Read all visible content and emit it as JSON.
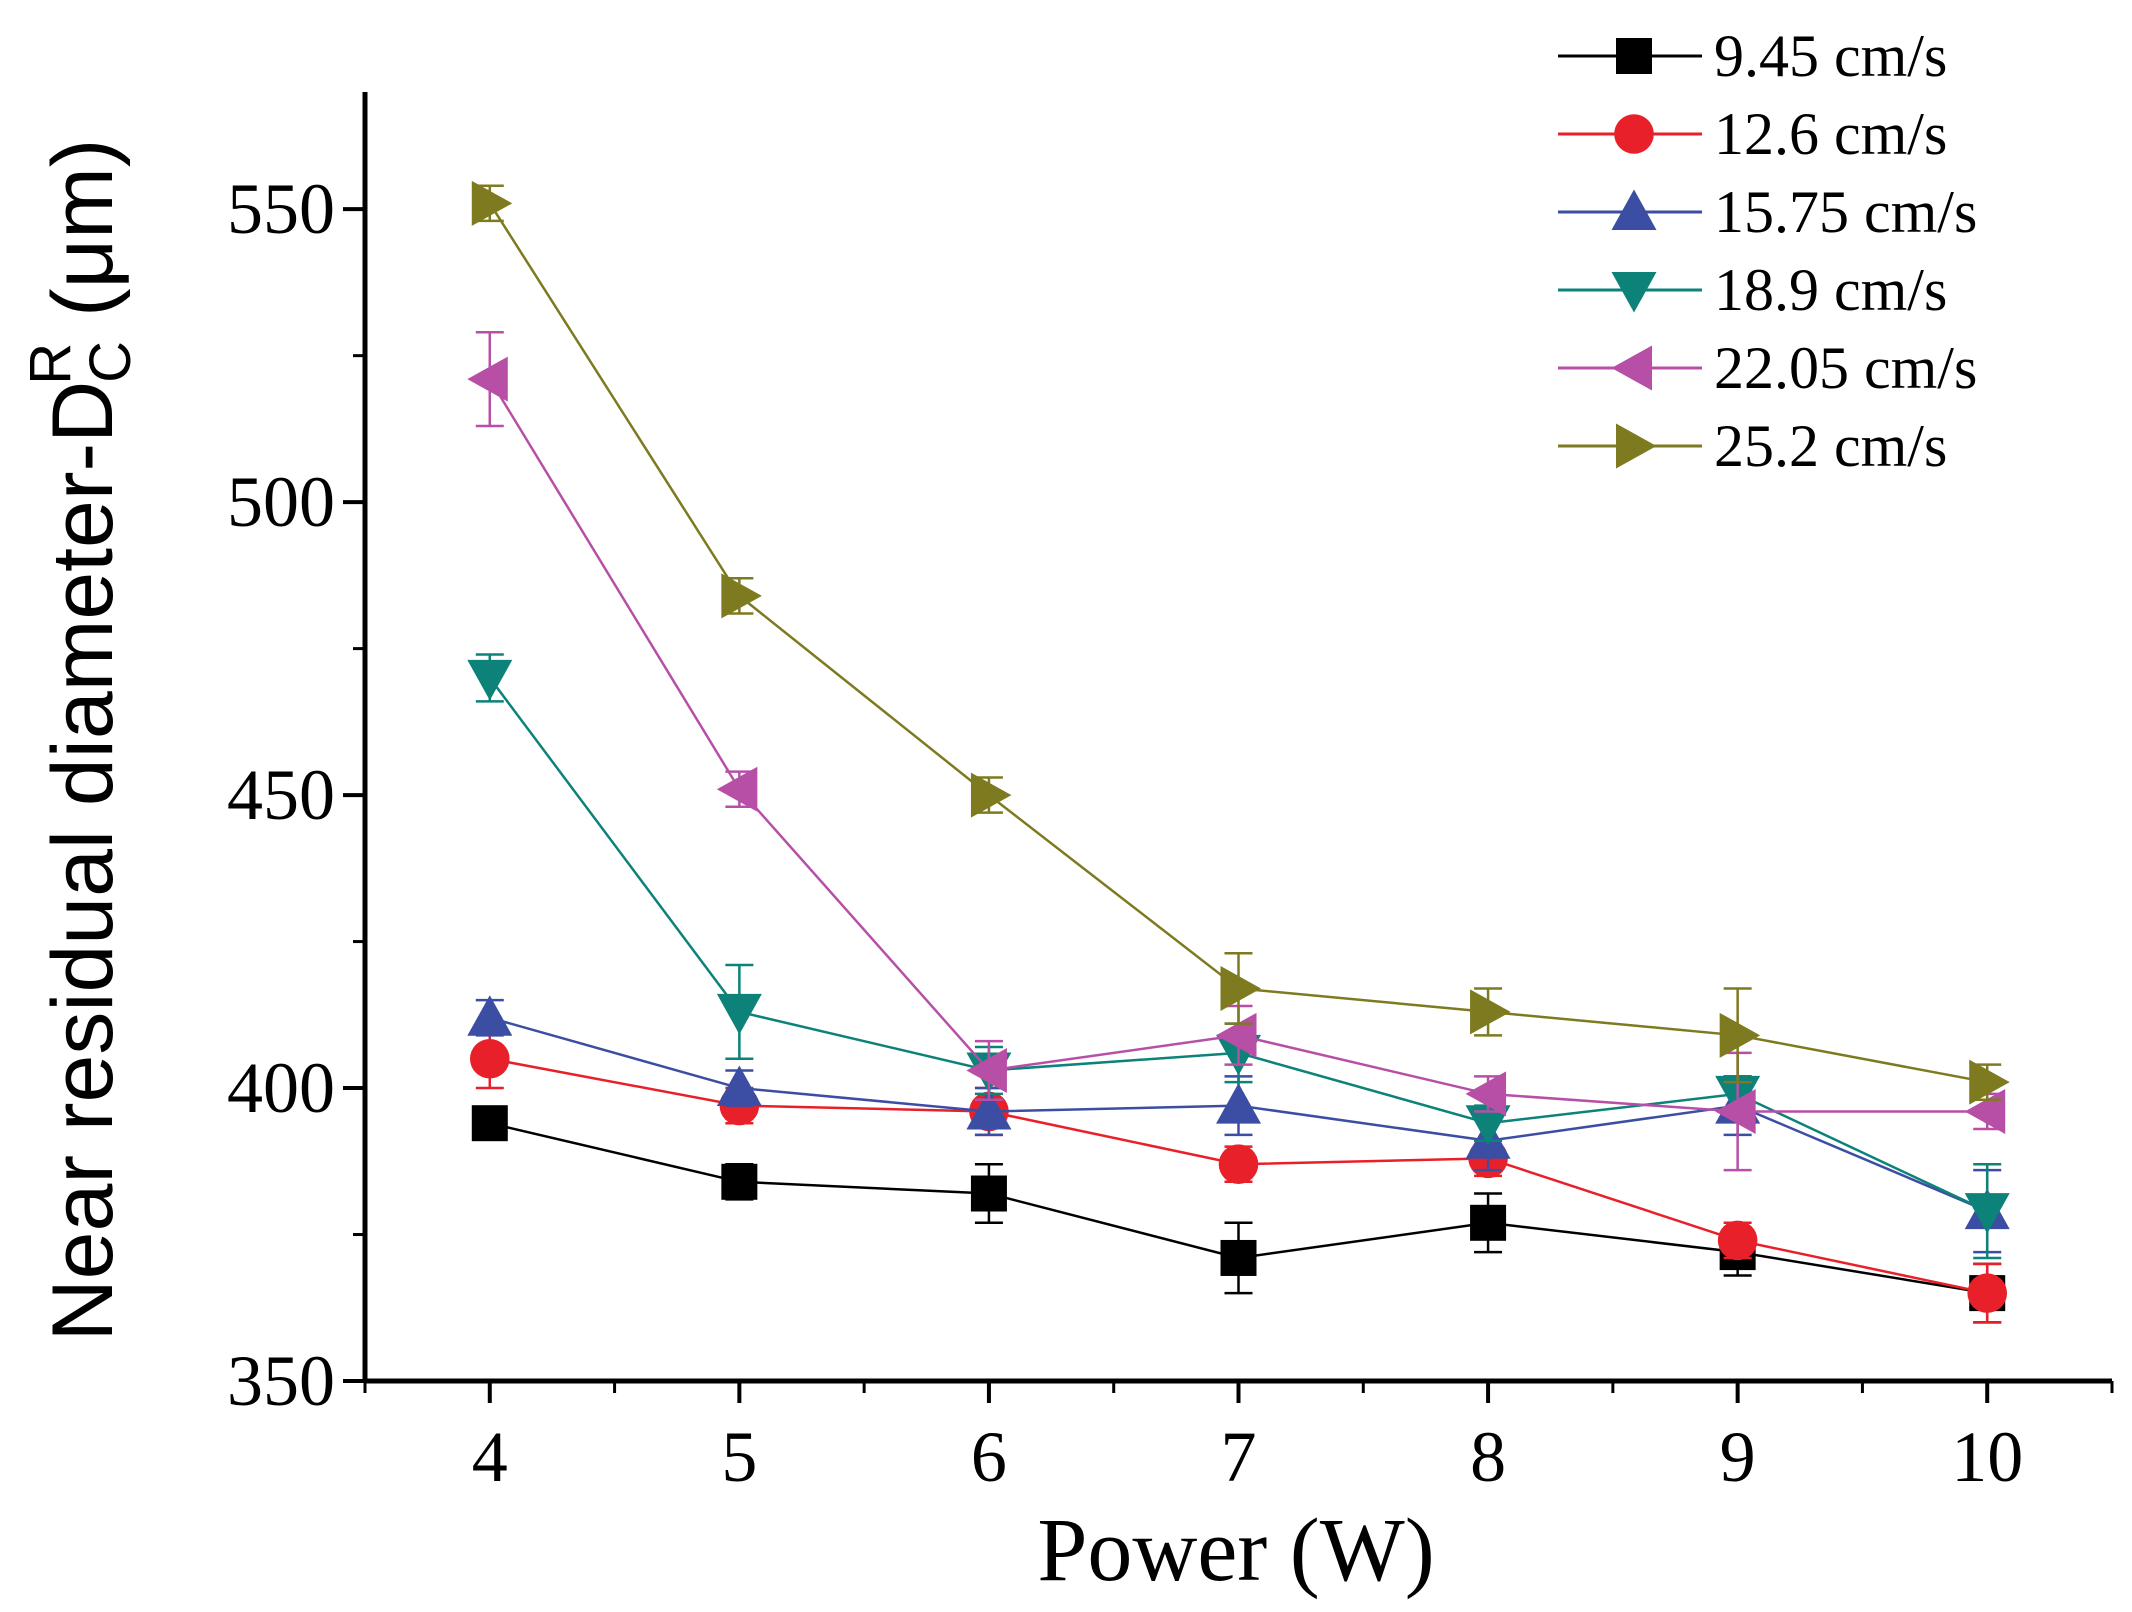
{
  "chart_data": {
    "type": "line",
    "title": "",
    "xlabel": "Power (W)",
    "ylabel": {
      "prefix": "Near residual diameter-D",
      "superscript": "R",
      "subscript": "C",
      "suffix": " (μm)"
    },
    "x": [
      4,
      5,
      6,
      7,
      8,
      9,
      10
    ],
    "xlim": [
      3.5,
      10.5
    ],
    "ylim": [
      350,
      570
    ],
    "xticks": [
      4,
      5,
      6,
      7,
      8,
      9,
      10
    ],
    "yticks": [
      350,
      400,
      450,
      500,
      550
    ],
    "legend_position": "top-right",
    "grid": false,
    "series": [
      {
        "name": "9.45 cm/s",
        "color": "#000000",
        "marker": "square",
        "values": [
          394,
          384,
          382,
          371,
          377,
          372,
          365
        ],
        "errors": [
          2,
          3,
          5,
          6,
          5,
          4,
          5
        ]
      },
      {
        "name": "12.6 cm/s",
        "color": "#e8202a",
        "marker": "circle",
        "values": [
          405,
          397,
          396,
          387,
          388,
          374,
          365
        ],
        "errors": [
          5,
          3,
          4,
          3,
          3,
          3,
          5
        ]
      },
      {
        "name": "15.75 cm/s",
        "color": "#3b4ea3",
        "marker": "triangle-up",
        "values": [
          412,
          400,
          396,
          397,
          391,
          397,
          379
        ],
        "errors": [
          3,
          3,
          4,
          5,
          5,
          5,
          7
        ]
      },
      {
        "name": "18.9 cm/s",
        "color": "#0c8279",
        "marker": "triangle-down",
        "values": [
          470,
          413,
          403,
          406,
          394,
          399,
          379
        ],
        "errors": [
          4,
          8,
          4,
          5,
          3,
          3,
          8
        ]
      },
      {
        "name": "22.05 cm/s",
        "color": "#b84fa6",
        "marker": "triangle-left",
        "values": [
          521,
          451,
          403,
          409,
          399,
          396,
          396
        ],
        "errors": [
          8,
          3,
          5,
          5,
          3,
          10,
          3
        ]
      },
      {
        "name": "25.2 cm/s",
        "color": "#7d7a1f",
        "marker": "triangle-right",
        "values": [
          551,
          484,
          450,
          417,
          413,
          409,
          401
        ],
        "errors": [
          3,
          3,
          3,
          6,
          4,
          8,
          3
        ]
      }
    ]
  }
}
